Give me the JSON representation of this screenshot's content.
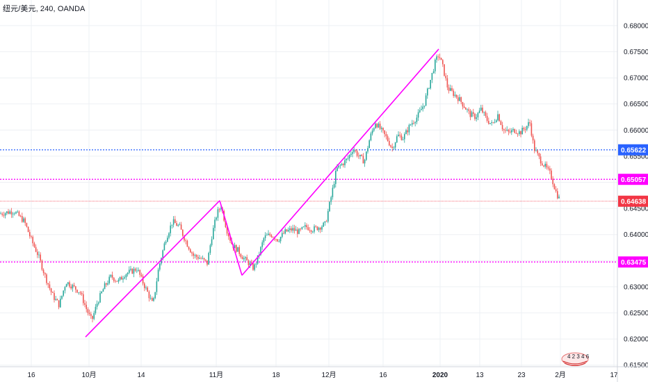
{
  "header": {
    "symbol": "纽元/美元",
    "separator": ",",
    "interval": "240",
    "broker": "OANDA"
  },
  "colors": {
    "up": "#26a69a",
    "down": "#ef5350",
    "trend_line": "#ff00ff",
    "blue_line": "#2962ff",
    "magenta_line": "#ff00ff",
    "current_price": "#f23645",
    "grid": "#eef0f4",
    "axis_border": "#d1d4dc"
  },
  "chart_data": {
    "type": "candlestick",
    "title": "纽元/美元, 240, OANDA",
    "y_axis": {
      "ylim": [
        0.6147,
        0.6849
      ],
      "ticks": [
        "0.68000",
        "0.67500",
        "0.67000",
        "0.66500",
        "0.66000",
        "0.65500",
        "0.65000",
        "0.64500",
        "0.64000",
        "0.63500",
        "0.63000",
        "0.62500",
        "0.62000",
        "0.61500"
      ]
    },
    "x_axis": {
      "labels": [
        {
          "text": "16",
          "bold": false
        },
        {
          "text": "10月",
          "bold": false
        },
        {
          "text": "14",
          "bold": false
        },
        {
          "text": "11月",
          "bold": false
        },
        {
          "text": "18",
          "bold": false
        },
        {
          "text": "12月",
          "bold": false
        },
        {
          "text": "16",
          "bold": false
        },
        {
          "text": "2020",
          "bold": true
        },
        {
          "text": "13",
          "bold": false
        },
        {
          "text": "23",
          "bold": false
        },
        {
          "text": "2月",
          "bold": false
        },
        {
          "text": "17",
          "bold": false
        }
      ]
    },
    "close_path": [
      [
        0,
        0.644
      ],
      [
        20,
        0.6445
      ],
      [
        35,
        0.6425
      ],
      [
        45,
        0.639
      ],
      [
        55,
        0.636
      ],
      [
        65,
        0.632
      ],
      [
        75,
        0.6285
      ],
      [
        85,
        0.6265
      ],
      [
        95,
        0.631
      ],
      [
        105,
        0.63
      ],
      [
        115,
        0.629
      ],
      [
        125,
        0.6255
      ],
      [
        132,
        0.6235
      ],
      [
        140,
        0.627
      ],
      [
        150,
        0.63
      ],
      [
        160,
        0.632
      ],
      [
        170,
        0.631
      ],
      [
        180,
        0.6325
      ],
      [
        190,
        0.633
      ],
      [
        197,
        0.6335
      ],
      [
        205,
        0.631
      ],
      [
        212,
        0.629
      ],
      [
        220,
        0.6265
      ],
      [
        228,
        0.6335
      ],
      [
        238,
        0.639
      ],
      [
        248,
        0.6425
      ],
      [
        258,
        0.6415
      ],
      [
        268,
        0.6385
      ],
      [
        278,
        0.636
      ],
      [
        288,
        0.6355
      ],
      [
        298,
        0.6345
      ],
      [
        305,
        0.64
      ],
      [
        312,
        0.644
      ],
      [
        318,
        0.6455
      ],
      [
        326,
        0.641
      ],
      [
        334,
        0.638
      ],
      [
        342,
        0.637
      ],
      [
        350,
        0.6355
      ],
      [
        358,
        0.6345
      ],
      [
        365,
        0.6335
      ],
      [
        372,
        0.636
      ],
      [
        380,
        0.6395
      ],
      [
        390,
        0.64
      ],
      [
        400,
        0.639
      ],
      [
        410,
        0.6405
      ],
      [
        420,
        0.641
      ],
      [
        430,
        0.6405
      ],
      [
        440,
        0.6415
      ],
      [
        450,
        0.641
      ],
      [
        460,
        0.6415
      ],
      [
        468,
        0.642
      ],
      [
        476,
        0.647
      ],
      [
        484,
        0.6525
      ],
      [
        492,
        0.6535
      ],
      [
        500,
        0.6545
      ],
      [
        508,
        0.6565
      ],
      [
        516,
        0.655
      ],
      [
        524,
        0.654
      ],
      [
        532,
        0.6585
      ],
      [
        540,
        0.6615
      ],
      [
        548,
        0.66
      ],
      [
        556,
        0.6585
      ],
      [
        564,
        0.6565
      ],
      [
        572,
        0.659
      ],
      [
        580,
        0.6585
      ],
      [
        590,
        0.661
      ],
      [
        600,
        0.6625
      ],
      [
        610,
        0.665
      ],
      [
        618,
        0.669
      ],
      [
        626,
        0.673
      ],
      [
        631,
        0.6745
      ],
      [
        637,
        0.672
      ],
      [
        644,
        0.668
      ],
      [
        652,
        0.667
      ],
      [
        660,
        0.666
      ],
      [
        668,
        0.6645
      ],
      [
        676,
        0.663
      ],
      [
        684,
        0.6625
      ],
      [
        692,
        0.664
      ],
      [
        700,
        0.662
      ],
      [
        708,
        0.661
      ],
      [
        716,
        0.663
      ],
      [
        724,
        0.66
      ],
      [
        732,
        0.6595
      ],
      [
        740,
        0.66
      ],
      [
        748,
        0.6595
      ],
      [
        756,
        0.6605
      ],
      [
        762,
        0.6615
      ],
      [
        768,
        0.6565
      ],
      [
        776,
        0.6545
      ],
      [
        784,
        0.653
      ],
      [
        792,
        0.6515
      ],
      [
        800,
        0.648
      ],
      [
        806,
        0.6464
      ]
    ],
    "annotations": {
      "trend_lines": [
        [
          [
            123,
            0.6204
          ],
          [
            316,
            0.6465
          ]
        ],
        [
          [
            316,
            0.6465
          ],
          [
            348,
            0.6322
          ]
        ],
        [
          [
            348,
            0.6322
          ],
          [
            631,
            0.6755
          ]
        ]
      ],
      "horizontal_lines": [
        {
          "price": 0.65622,
          "label": "0.65622",
          "color": "#2962ff",
          "style": "dotted"
        },
        {
          "price": 0.65057,
          "label": "0.65057",
          "color": "#ff00ff",
          "style": "dotted"
        },
        {
          "price": 0.64638,
          "label": "0.64638",
          "color": "#f23645",
          "style": "thin"
        },
        {
          "price": 0.63475,
          "label": "0.63475",
          "color": "#ff00ff",
          "style": "dotted"
        }
      ]
    },
    "events_badge": "4 2 3 4 6",
    "grid": true
  }
}
